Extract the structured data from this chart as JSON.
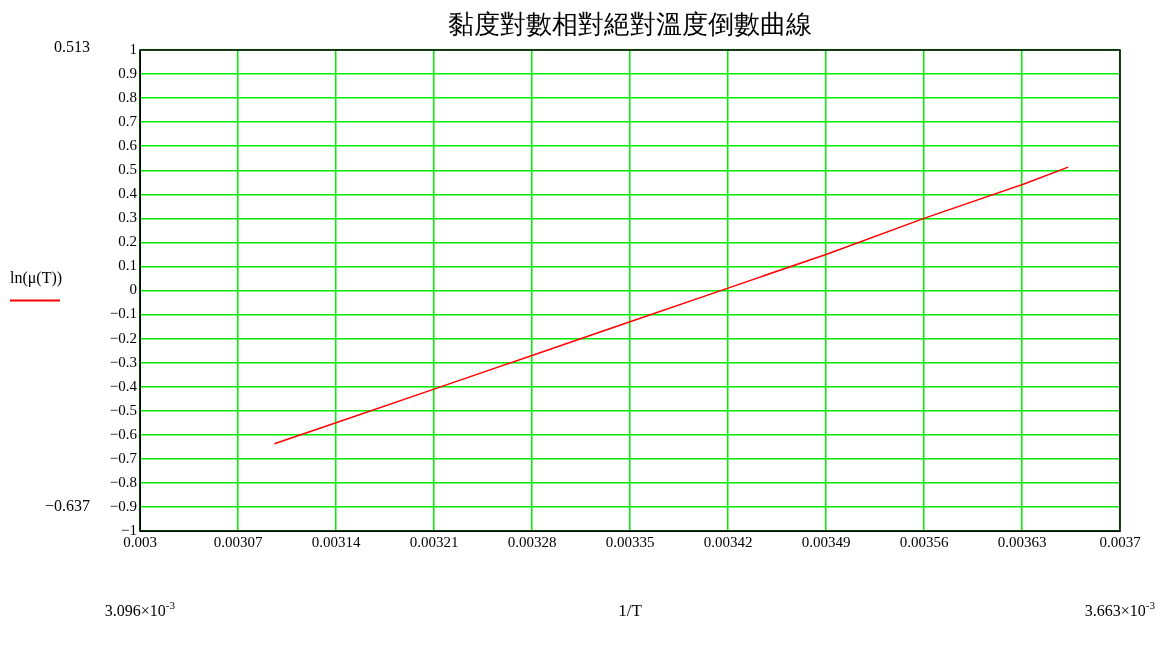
{
  "chart_data": {
    "type": "line",
    "title": "黏度對數相對絕對溫度倒數曲線",
    "xlabel": "1/T",
    "x": [
      0.003096,
      0.00314,
      0.00321,
      0.00328,
      0.00335,
      0.00342,
      0.00349,
      0.00356,
      0.00363,
      0.003663
    ],
    "series": [
      {
        "name": "ln(μ(T))",
        "color": "#ff0000",
        "values": [
          -0.637,
          -0.55,
          -0.41,
          -0.27,
          -0.13,
          0.01,
          0.15,
          0.3,
          0.44,
          0.513
        ]
      }
    ],
    "xlim": [
      0.003,
      0.0037
    ],
    "xticks": [
      0.003,
      0.00307,
      0.00314,
      0.00321,
      0.00328,
      0.00335,
      0.00342,
      0.00349,
      0.00356,
      0.00363,
      0.0037
    ],
    "ylim": [
      -1,
      1
    ],
    "yticks": [
      -1,
      -0.9,
      -0.8,
      -0.7,
      -0.6,
      -0.5,
      -0.4,
      -0.3,
      -0.2,
      -0.1,
      0,
      0.1,
      0.2,
      0.3,
      0.4,
      0.5,
      0.6,
      0.7,
      0.8,
      0.9,
      1
    ],
    "grid": true,
    "legend": "left",
    "marker": "none",
    "line_style": "solid",
    "annotations": [
      "0.513",
      "−0.637",
      "3.096×10$^{-3}$",
      "3.663×10$^{-3}$"
    ]
  }
}
